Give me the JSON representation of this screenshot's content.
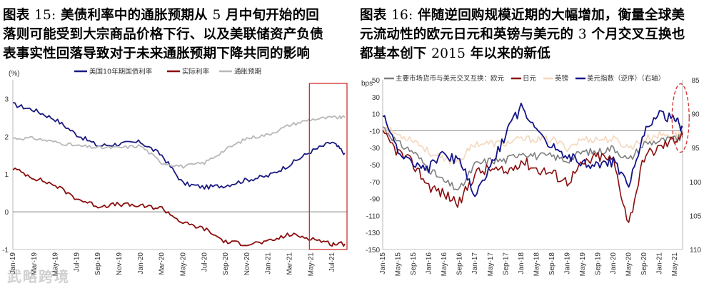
{
  "figure_left": {
    "title_prefix": "图表",
    "title_num": "15:",
    "title_line1_rest": "美债利率中的通胀预期从",
    "title_line1_num": "5",
    "title_line1_tail": "月中旬开始的回",
    "title_line2": "落则可能受到大宗商品价格下行、以及美联储资产负债",
    "title_line3": "表事实性回落导致对于未来通胀预期下降共同的影响"
  },
  "figure_right": {
    "title_prefix": "图表",
    "title_num": "16:",
    "title_line1_rest": "伴随逆回购规模近期的大幅增加，衡量全球美",
    "title_line2_pre": "元流动性的欧元日元和英镑与美元的",
    "title_line2_num": "3",
    "title_line2_tail": "个月交叉互换也",
    "title_line3_pre": "都基本创下",
    "title_line3_num": "2015",
    "title_line3_tail": "年以来的新低"
  },
  "watermark": "武略跨境",
  "chart_data": [
    {
      "type": "line",
      "ylabel": "(%)",
      "ylim": [
        -1,
        3.5
      ],
      "yticks": [
        -1,
        0,
        1,
        2,
        3
      ],
      "xtick_labels": [
        "Jan-19",
        "Mar-19",
        "May-19",
        "Jul-19",
        "Sep-19",
        "Nov-19",
        "Jan-20",
        "Mar-20",
        "May-20",
        "Jul-20",
        "Sep-20",
        "Nov-20",
        "Jan-21",
        "Mar-21",
        "May-21",
        "Jul-21"
      ],
      "legend": {
        "position": "top"
      },
      "highlight_box": {
        "from": "May-21",
        "to": "Jul-21",
        "color": "#d03030"
      },
      "series": [
        {
          "name": "美国10年期国债利率",
          "color": "#1a1a80",
          "x": [
            0,
            1,
            2,
            3,
            4,
            5,
            6,
            7,
            8,
            9,
            10,
            11,
            12,
            13,
            14,
            15,
            15.6
          ],
          "values": [
            2.85,
            2.7,
            2.45,
            2.05,
            1.75,
            1.8,
            1.85,
            1.5,
            0.75,
            0.65,
            0.7,
            0.85,
            0.95,
            1.25,
            1.6,
            1.85,
            1.55
          ]
        },
        {
          "name": "实际利率",
          "color": "#8b0d0d",
          "x": [
            0,
            1,
            2,
            3,
            4,
            5,
            6,
            7,
            8,
            9,
            10,
            11,
            12,
            13,
            14,
            15,
            15.6
          ],
          "values": [
            1.15,
            0.9,
            0.7,
            0.35,
            0.15,
            0.2,
            0.15,
            0.1,
            -0.3,
            -0.45,
            -0.8,
            -0.85,
            -0.8,
            -0.6,
            -0.7,
            -0.85,
            -0.85
          ]
        },
        {
          "name": "通胀预期",
          "color": "#b8b8b8",
          "x": [
            0,
            1,
            2,
            3,
            4,
            5,
            6,
            7,
            8,
            9,
            10,
            11,
            12,
            13,
            14,
            15,
            15.6
          ],
          "values": [
            1.95,
            1.95,
            1.85,
            1.75,
            1.7,
            1.7,
            1.75,
            1.3,
            1.2,
            1.3,
            1.65,
            1.95,
            2.05,
            2.3,
            2.45,
            2.5,
            2.5
          ]
        }
      ]
    },
    {
      "type": "line",
      "ylabel": "bps",
      "ylim": [
        -150,
        50
      ],
      "yticks": [
        50,
        30,
        10,
        -10,
        -30,
        -50,
        -70,
        -90,
        -110,
        -130,
        -150
      ],
      "y2lim": [
        85,
        110
      ],
      "y2ticks": [
        85,
        90,
        95,
        100,
        105,
        110
      ],
      "y2_inverted": true,
      "xtick_labels": [
        "Jan-15",
        "May-15",
        "Sep-15",
        "Jan-16",
        "May-16",
        "Sep-16",
        "Jan-17",
        "May-17",
        "Sep-17",
        "Jan-18",
        "May-18",
        "Sep-18",
        "Jan-19",
        "May-19",
        "Sep-19",
        "Jan-20",
        "May-20",
        "Sep-20",
        "Jan-21",
        "May-21"
      ],
      "legend": {
        "position": "top",
        "title": "主要市场货币与美元交叉互换："
      },
      "highlight_ellipse": {
        "around": "May-21",
        "color": "#d03030"
      },
      "series": [
        {
          "name": "欧元",
          "color": "#7f7f7f",
          "x": [
            0,
            1,
            2,
            3,
            4,
            5,
            6,
            7,
            8,
            9,
            10,
            11,
            12,
            13,
            14,
            15,
            16,
            17,
            18,
            19,
            19.5
          ],
          "values": [
            -5,
            -25,
            -35,
            -55,
            -70,
            -80,
            -50,
            -45,
            -45,
            -35,
            -40,
            -40,
            -45,
            -35,
            -35,
            -30,
            -45,
            -25,
            -22,
            -20,
            -18
          ]
        },
        {
          "name": "日元",
          "color": "#8b0d0d",
          "x": [
            0,
            1,
            2,
            3,
            4,
            5,
            6,
            7,
            8,
            9,
            10,
            11,
            12,
            13,
            14,
            15,
            16,
            17,
            18,
            19,
            19.5
          ],
          "values": [
            -15,
            -35,
            -50,
            -75,
            -85,
            -95,
            -60,
            -55,
            -60,
            -45,
            -55,
            -60,
            -70,
            -50,
            -40,
            -45,
            -120,
            -40,
            -30,
            -20,
            -15
          ]
        },
        {
          "name": "英镑",
          "color": "#f5d7bc",
          "x": [
            0,
            1,
            2,
            3,
            4,
            5,
            6,
            7,
            8,
            9,
            10,
            11,
            12,
            13,
            14,
            15,
            16,
            17,
            18,
            19,
            19.5
          ],
          "values": [
            -5,
            -15,
            -20,
            -35,
            -45,
            -45,
            -25,
            -25,
            -25,
            -20,
            -20,
            -20,
            -30,
            -20,
            -20,
            -20,
            -30,
            -20,
            -15,
            -15,
            -15
          ]
        },
        {
          "name": "美元指数（逆序）（右轴）",
          "color": "#14148a",
          "axis": "right",
          "x": [
            0,
            1,
            2,
            3,
            4,
            5,
            6,
            7,
            8,
            9,
            10,
            11,
            12,
            13,
            14,
            15,
            16,
            17,
            18,
            19,
            19.5
          ],
          "values": [
            90,
            96,
            97,
            98,
            96,
            97,
            102,
            98,
            93,
            89,
            92,
            95,
            96,
            97,
            98,
            97,
            101,
            93,
            90,
            91,
            92
          ]
        }
      ]
    }
  ]
}
